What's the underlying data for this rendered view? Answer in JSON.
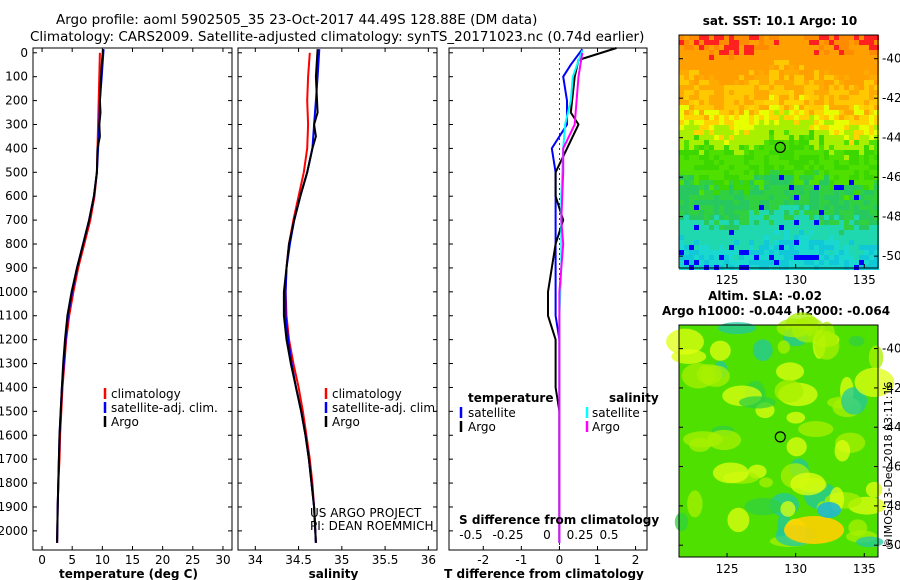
{
  "titles": {
    "line1": "Argo profile: aoml 5902505_35 23-Oct-2017 44.49S 128.88E (DM data)",
    "line2": "Climatology: CARS2009. Satellite-adjusted climatology: synTS_20171023.nc (0.74d earlier)"
  },
  "colors": {
    "climatology": "#ff0000",
    "satellite": "#0000ff",
    "argo": "#000000",
    "sat_salinity": "#00ffff",
    "argo_salinity": "#ff00ff"
  },
  "depth_ticks": [
    "0",
    "100",
    "200",
    "300",
    "400",
    "500",
    "600",
    "700",
    "800",
    "900",
    "1000",
    "1100",
    "1200",
    "1300",
    "1400",
    "1500",
    "1600",
    "1700",
    "1800",
    "1900",
    "2000"
  ],
  "chart_data": [
    {
      "type": "line",
      "xlabel": "temperature (deg C)",
      "xticks": [
        "0",
        "5",
        "10",
        "15",
        "20",
        "25",
        "30"
      ],
      "xlim": [
        -1.5,
        31.5
      ],
      "ylim": [
        2080,
        -20
      ],
      "legend": [
        "climatology",
        "satellite-adj. clim.",
        "Argo"
      ],
      "series": [
        {
          "name": "climatology",
          "color": "#ff0000",
          "points": [
            [
              9.6,
              0
            ],
            [
              9.5,
              100
            ],
            [
              9.4,
              200
            ],
            [
              9.3,
              300
            ],
            [
              9.2,
              400
            ],
            [
              9.1,
              500
            ],
            [
              8.7,
              600
            ],
            [
              8.0,
              700
            ],
            [
              7.0,
              800
            ],
            [
              6.0,
              900
            ],
            [
              5.2,
              1000
            ],
            [
              4.5,
              1100
            ],
            [
              4.0,
              1200
            ],
            [
              3.7,
              1300
            ],
            [
              3.4,
              1400
            ],
            [
              3.2,
              1500
            ],
            [
              3.0,
              1600
            ],
            [
              2.9,
              1700
            ],
            [
              2.7,
              1800
            ],
            [
              2.6,
              1900
            ],
            [
              2.5,
              2050
            ]
          ]
        },
        {
          "name": "satellite-adj. clim.",
          "color": "#0000ff",
          "points": [
            [
              10.2,
              -15
            ],
            [
              9.9,
              100
            ],
            [
              9.6,
              200
            ],
            [
              9.5,
              300
            ],
            [
              9.3,
              400
            ],
            [
              9.1,
              500
            ],
            [
              8.6,
              600
            ],
            [
              7.8,
              700
            ],
            [
              6.8,
              800
            ],
            [
              5.8,
              900
            ],
            [
              5.0,
              1000
            ],
            [
              4.3,
              1100
            ],
            [
              3.9,
              1200
            ],
            [
              3.6,
              1300
            ],
            [
              3.3,
              1400
            ],
            [
              3.1,
              1500
            ],
            [
              2.9,
              1600
            ],
            [
              2.8,
              1700
            ],
            [
              2.7,
              1800
            ],
            [
              2.6,
              1900
            ],
            [
              2.5,
              2050
            ]
          ]
        },
        {
          "name": "Argo",
          "color": "#000000",
          "points": [
            [
              10.1,
              -15
            ],
            [
              9.9,
              50
            ],
            [
              9.8,
              100
            ],
            [
              9.6,
              200
            ],
            [
              9.7,
              250
            ],
            [
              9.5,
              300
            ],
            [
              9.6,
              350
            ],
            [
              9.2,
              400
            ],
            [
              9.1,
              500
            ],
            [
              8.6,
              600
            ],
            [
              7.8,
              700
            ],
            [
              6.8,
              800
            ],
            [
              5.8,
              900
            ],
            [
              4.9,
              1000
            ],
            [
              4.2,
              1100
            ],
            [
              3.8,
              1200
            ],
            [
              3.5,
              1300
            ],
            [
              3.3,
              1400
            ],
            [
              3.1,
              1500
            ],
            [
              2.9,
              1600
            ],
            [
              2.8,
              1700
            ],
            [
              2.7,
              1800
            ],
            [
              2.6,
              1900
            ],
            [
              2.5,
              2050
            ]
          ]
        }
      ]
    },
    {
      "type": "line",
      "xlabel": "salinity",
      "xticks": [
        "34",
        "34.5",
        "35",
        "35.5",
        "36"
      ],
      "xlim": [
        33.8,
        36.1
      ],
      "ylim": [
        2080,
        -20
      ],
      "legend": [
        "climatology",
        "satellite-adj. clim.",
        "Argo"
      ],
      "annotations": [
        "US ARGO PROJECT",
        "PI: DEAN ROEMMICH"
      ],
      "series": [
        {
          "name": "climatology",
          "color": "#ff0000",
          "points": [
            [
              34.63,
              0
            ],
            [
              34.61,
              100
            ],
            [
              34.6,
              200
            ],
            [
              34.61,
              300
            ],
            [
              34.6,
              400
            ],
            [
              34.56,
              500
            ],
            [
              34.5,
              600
            ],
            [
              34.44,
              700
            ],
            [
              34.39,
              800
            ],
            [
              34.36,
              900
            ],
            [
              34.35,
              1000
            ],
            [
              34.36,
              1100
            ],
            [
              34.39,
              1200
            ],
            [
              34.44,
              1300
            ],
            [
              34.5,
              1400
            ],
            [
              34.55,
              1500
            ],
            [
              34.59,
              1600
            ],
            [
              34.63,
              1700
            ],
            [
              34.66,
              1800
            ],
            [
              34.68,
              1900
            ],
            [
              34.7,
              2050
            ]
          ]
        },
        {
          "name": "satellite-adj. clim.",
          "color": "#0000ff",
          "points": [
            [
              34.74,
              -15
            ],
            [
              34.72,
              100
            ],
            [
              34.7,
              200
            ],
            [
              34.68,
              300
            ],
            [
              34.66,
              400
            ],
            [
              34.6,
              500
            ],
            [
              34.52,
              600
            ],
            [
              34.45,
              700
            ],
            [
              34.4,
              800
            ],
            [
              34.36,
              900
            ],
            [
              34.35,
              1000
            ],
            [
              34.35,
              1100
            ],
            [
              34.38,
              1200
            ],
            [
              34.42,
              1300
            ],
            [
              34.47,
              1400
            ],
            [
              34.53,
              1500
            ],
            [
              34.58,
              1600
            ],
            [
              34.62,
              1700
            ],
            [
              34.65,
              1800
            ],
            [
              34.68,
              1900
            ],
            [
              34.7,
              2050
            ]
          ]
        },
        {
          "name": "Argo",
          "color": "#000000",
          "points": [
            [
              34.72,
              -15
            ],
            [
              34.7,
              100
            ],
            [
              34.72,
              250
            ],
            [
              34.68,
              300
            ],
            [
              34.7,
              350
            ],
            [
              34.66,
              400
            ],
            [
              34.6,
              500
            ],
            [
              34.52,
              600
            ],
            [
              34.45,
              700
            ],
            [
              34.39,
              800
            ],
            [
              34.36,
              900
            ],
            [
              34.33,
              1000
            ],
            [
              34.33,
              1100
            ],
            [
              34.36,
              1200
            ],
            [
              34.41,
              1300
            ],
            [
              34.47,
              1400
            ],
            [
              34.53,
              1500
            ],
            [
              34.58,
              1600
            ],
            [
              34.62,
              1700
            ],
            [
              34.65,
              1800
            ],
            [
              34.68,
              1900
            ],
            [
              34.7,
              2050
            ]
          ]
        }
      ]
    },
    {
      "type": "line",
      "xlabel": "T difference from climatology",
      "xlabel2": "S difference from climatology",
      "xticks": [
        "-2",
        "-1",
        "0",
        "1",
        "2"
      ],
      "xticks2": [
        "-0.5",
        "-0.25",
        "0",
        "0.25",
        "0.5"
      ],
      "xlim": [
        -2.9,
        2.3
      ],
      "ylim": [
        2080,
        -20
      ],
      "legend_left_title": "temperature",
      "legend_right_title": "salinity",
      "legend_left": [
        "satellite",
        "Argo"
      ],
      "legend_right": [
        "satellite",
        "Argo"
      ],
      "series": [
        {
          "name": "T satellite",
          "color": "#0000ff",
          "points": [
            [
              0.6,
              -15
            ],
            [
              0.3,
              50
            ],
            [
              0.1,
              100
            ],
            [
              0.2,
              200
            ],
            [
              0.2,
              300
            ],
            [
              -0.2,
              400
            ],
            [
              -0.1,
              500
            ],
            [
              -0.1,
              600
            ],
            [
              -0.1,
              700
            ],
            [
              -0.1,
              800
            ],
            [
              -0.1,
              900
            ],
            [
              -0.1,
              1000
            ],
            [
              -0.1,
              1100
            ],
            [
              0,
              1200
            ],
            [
              0,
              1300
            ],
            [
              0,
              1400
            ],
            [
              0,
              1500
            ],
            [
              0,
              1600
            ],
            [
              0,
              1700
            ],
            [
              0,
              1800
            ],
            [
              0,
              1900
            ],
            [
              0,
              2050
            ]
          ]
        },
        {
          "name": "T Argo",
          "color": "#000000",
          "points": [
            [
              1.5,
              -20
            ],
            [
              0.5,
              30
            ],
            [
              0.4,
              100
            ],
            [
              0.3,
              250
            ],
            [
              0.5,
              300
            ],
            [
              -0.1,
              500
            ],
            [
              -0.1,
              600
            ],
            [
              0.1,
              700
            ],
            [
              -0.1,
              800
            ],
            [
              -0.2,
              900
            ],
            [
              -0.3,
              1000
            ],
            [
              -0.3,
              1100
            ],
            [
              -0.1,
              1200
            ],
            [
              -0.1,
              1300
            ],
            [
              -0.1,
              1400
            ],
            [
              0,
              1500
            ],
            [
              0,
              1600
            ],
            [
              0,
              1700
            ],
            [
              0,
              1800
            ],
            [
              0,
              1900
            ],
            [
              0,
              2050
            ]
          ]
        },
        {
          "name": "S satellite",
          "color": "#00ffff",
          "points": [
            [
              0.6,
              -10
            ],
            [
              0.35,
              100
            ],
            [
              0.3,
              200
            ],
            [
              0.15,
              300
            ],
            [
              0.1,
              400
            ],
            [
              0.05,
              600
            ],
            [
              0.05,
              800
            ],
            [
              0.05,
              900
            ],
            [
              0,
              1100
            ],
            [
              0,
              1300
            ],
            [
              0,
              1500
            ],
            [
              0,
              1700
            ],
            [
              0,
              1900
            ],
            [
              0,
              2050
            ]
          ]
        },
        {
          "name": "S Argo",
          "color": "#ff00ff",
          "points": [
            [
              0.6,
              0
            ],
            [
              0.5,
              100
            ],
            [
              0.45,
              200
            ],
            [
              0.4,
              300
            ],
            [
              0.1,
              400
            ],
            [
              0.1,
              500
            ],
            [
              0.05,
              700
            ],
            [
              0.1,
              800
            ],
            [
              0,
              1000
            ],
            [
              0,
              1200
            ],
            [
              0,
              1500
            ],
            [
              0,
              1700
            ],
            [
              0,
              1900
            ],
            [
              0,
              2050
            ]
          ]
        }
      ]
    },
    {
      "type": "heatmap",
      "title": "sat. SST: 10.1  Argo: 10",
      "xticks": [
        "125",
        "130",
        "135"
      ],
      "yticks": [
        "-40",
        "-42",
        "-44",
        "-46",
        "-48",
        "-50"
      ],
      "xlim": [
        121.5,
        136
      ],
      "ylim": [
        -50.6,
        -38.8
      ],
      "marker": {
        "lon": 128.88,
        "lat": -44.49
      }
    },
    {
      "type": "heatmap",
      "title": "Altim. SLA: -0.02",
      "subtitle": "Argo h1000: -0.044 h2000: -0.064",
      "xticks": [
        "125",
        "130",
        "135"
      ],
      "yticks": [
        "-40",
        "-42",
        "-44",
        "-46",
        "-48",
        "-50"
      ],
      "xlim": [
        121.5,
        136
      ],
      "ylim": [
        -50.6,
        -38.8
      ],
      "marker": {
        "lon": 128.88,
        "lat": -44.49
      }
    }
  ],
  "footer": {
    "credit": "©IMOS 13-Dec-2018 03:11:16"
  }
}
